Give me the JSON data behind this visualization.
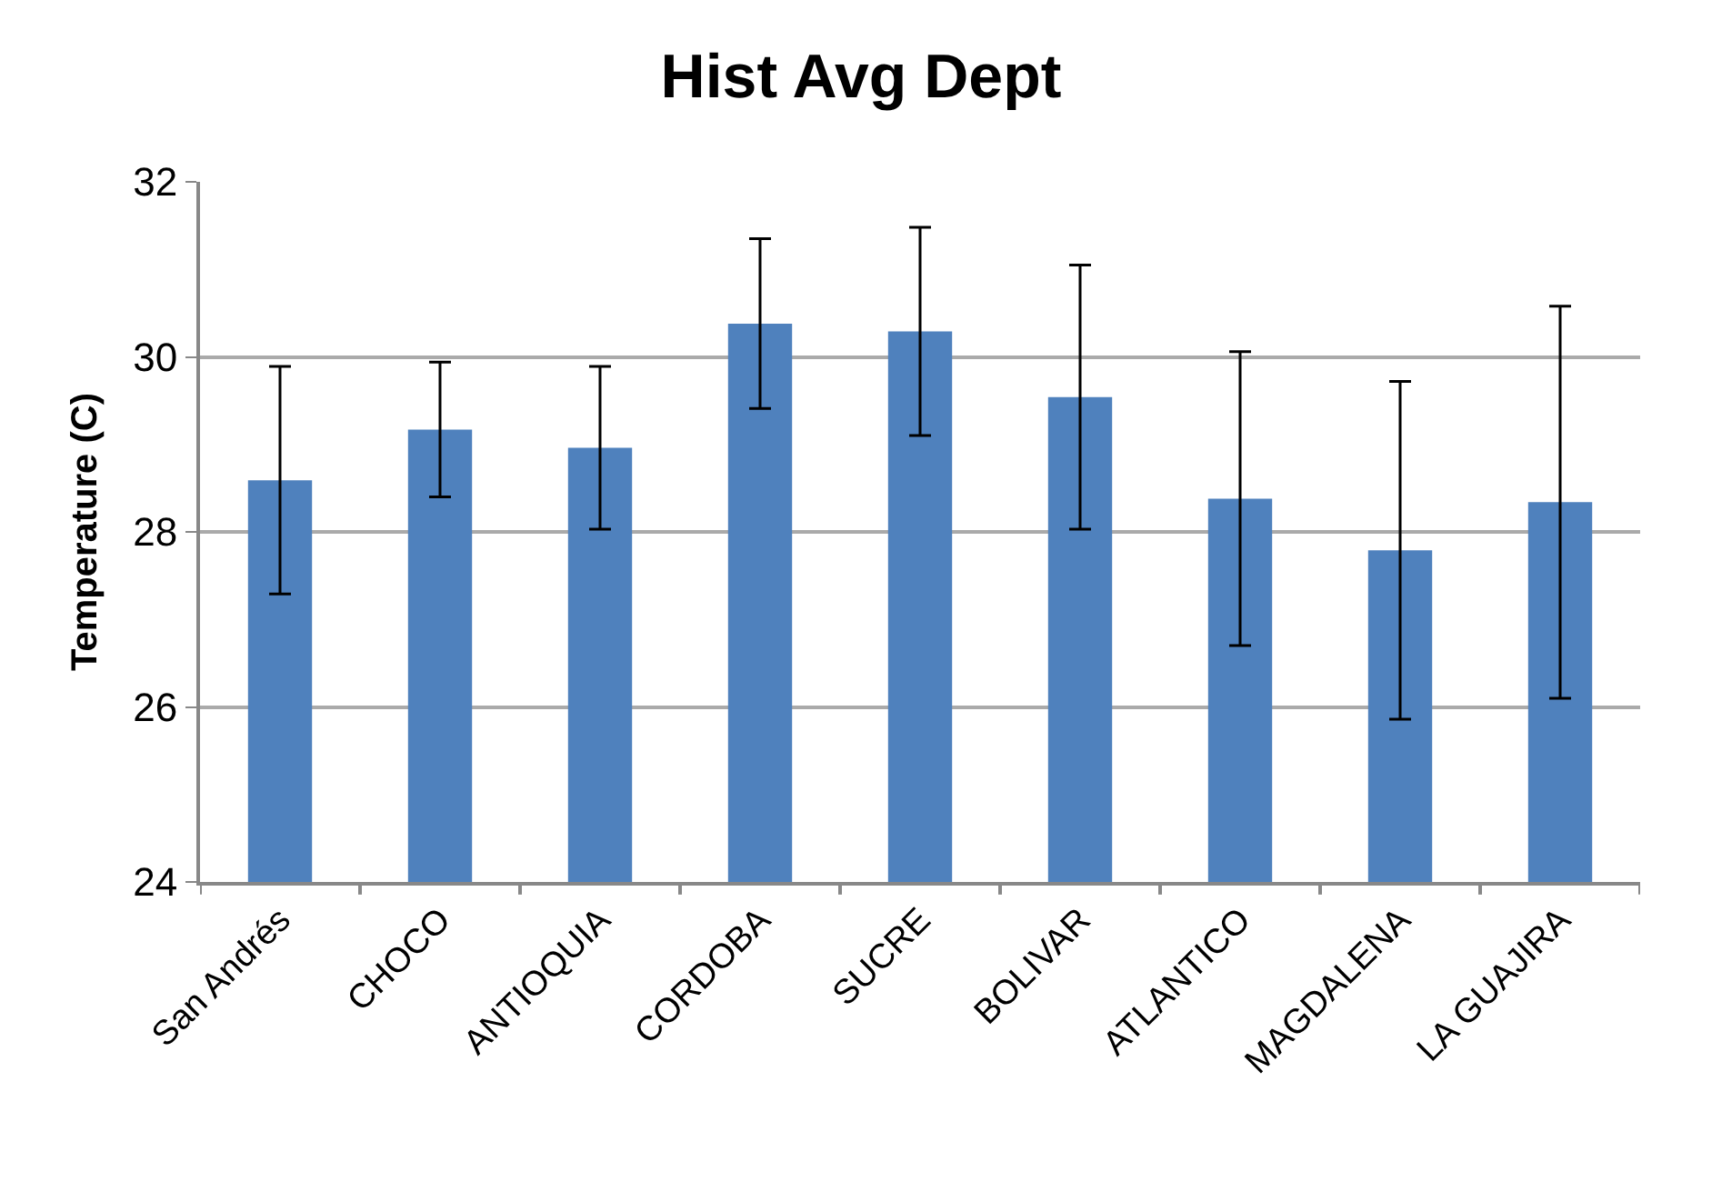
{
  "chart_data": {
    "type": "bar",
    "title": "Hist Avg Dept",
    "ylabel": "Temperature (C)",
    "categories": [
      "San Andrés",
      "CHOCO",
      "ANTIOQUIA",
      "CORDOBA",
      "SUCRE",
      "BOLIVAR",
      "ATLANTICO",
      "MAGDALENA",
      "LA GUAJIRA"
    ],
    "values": [
      28.59,
      29.17,
      28.96,
      30.38,
      30.29,
      29.54,
      28.38,
      27.79,
      28.34
    ],
    "errors": [
      1.3,
      0.77,
      0.93,
      0.97,
      1.19,
      1.51,
      1.68,
      1.93,
      2.24
    ],
    "color": "#4f81bd",
    "ylim": [
      24,
      32
    ],
    "yticks": [
      24,
      26,
      28,
      30,
      32
    ],
    "grid": "y"
  }
}
